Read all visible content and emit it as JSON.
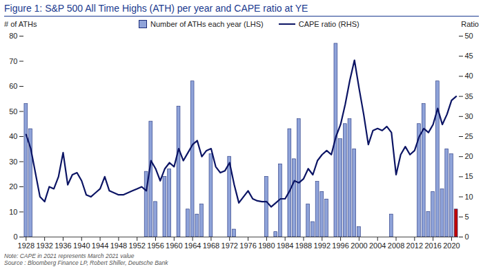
{
  "chart_data": {
    "type": "bar",
    "title": "Figure 1: S&P 500 All Time Highs (ATH) per year and CAPE ratio at YE",
    "ylabel": "# of ATHs",
    "y2label": "Ratio",
    "x": [
      1928,
      1929,
      1930,
      1931,
      1932,
      1933,
      1934,
      1935,
      1936,
      1937,
      1938,
      1939,
      1940,
      1941,
      1942,
      1943,
      1944,
      1945,
      1946,
      1947,
      1948,
      1949,
      1950,
      1951,
      1952,
      1953,
      1954,
      1955,
      1956,
      1957,
      1958,
      1959,
      1960,
      1961,
      1962,
      1963,
      1964,
      1965,
      1966,
      1967,
      1968,
      1969,
      1970,
      1971,
      1972,
      1973,
      1974,
      1975,
      1976,
      1977,
      1978,
      1979,
      1980,
      1981,
      1982,
      1983,
      1984,
      1985,
      1986,
      1987,
      1988,
      1989,
      1990,
      1991,
      1992,
      1993,
      1994,
      1995,
      1996,
      1997,
      1998,
      1999,
      2000,
      2001,
      2002,
      2003,
      2004,
      2005,
      2006,
      2007,
      2008,
      2009,
      2010,
      2011,
      2012,
      2013,
      2014,
      2015,
      2016,
      2017,
      2018,
      2019,
      2020,
      2021
    ],
    "xlim": [
      1927.5,
      2021.5
    ],
    "xticks": [
      1928,
      1932,
      1936,
      1940,
      1944,
      1948,
      1952,
      1956,
      1960,
      1964,
      1968,
      1972,
      1976,
      1980,
      1984,
      1988,
      1992,
      1996,
      2000,
      2004,
      2008,
      2012,
      2016,
      2020
    ],
    "ylim": [
      0,
      80
    ],
    "yticks": [
      0,
      10,
      20,
      30,
      40,
      50,
      60,
      70,
      80
    ],
    "y2lim": [
      0,
      50
    ],
    "y2ticks": [
      0,
      5,
      10,
      15,
      20,
      25,
      30,
      35,
      40,
      45,
      50
    ],
    "legend": "top",
    "series": [
      {
        "name": "Number of ATHs each year (LHS)",
        "type": "bar",
        "color": "#8fa3d9",
        "colors": [
          "#8fa3d9",
          "#8fa3d9",
          "#8fa3d9",
          "#8fa3d9",
          "#8fa3d9",
          "#8fa3d9",
          "#8fa3d9",
          "#8fa3d9",
          "#8fa3d9",
          "#8fa3d9",
          "#8fa3d9",
          "#8fa3d9",
          "#8fa3d9",
          "#8fa3d9",
          "#8fa3d9",
          "#8fa3d9",
          "#8fa3d9",
          "#8fa3d9",
          "#8fa3d9",
          "#8fa3d9",
          "#8fa3d9",
          "#8fa3d9",
          "#8fa3d9",
          "#8fa3d9",
          "#8fa3d9",
          "#8fa3d9",
          "#8fa3d9",
          "#8fa3d9",
          "#8fa3d9",
          "#8fa3d9",
          "#8fa3d9",
          "#8fa3d9",
          "#8fa3d9",
          "#8fa3d9",
          "#8fa3d9",
          "#8fa3d9",
          "#8fa3d9",
          "#8fa3d9",
          "#8fa3d9",
          "#8fa3d9",
          "#8fa3d9",
          "#8fa3d9",
          "#8fa3d9",
          "#8fa3d9",
          "#8fa3d9",
          "#8fa3d9",
          "#8fa3d9",
          "#8fa3d9",
          "#8fa3d9",
          "#8fa3d9",
          "#8fa3d9",
          "#8fa3d9",
          "#8fa3d9",
          "#8fa3d9",
          "#8fa3d9",
          "#8fa3d9",
          "#8fa3d9",
          "#8fa3d9",
          "#8fa3d9",
          "#8fa3d9",
          "#8fa3d9",
          "#8fa3d9",
          "#8fa3d9",
          "#8fa3d9",
          "#8fa3d9",
          "#8fa3d9",
          "#8fa3d9",
          "#8fa3d9",
          "#8fa3d9",
          "#8fa3d9",
          "#8fa3d9",
          "#8fa3d9",
          "#8fa3d9",
          "#8fa3d9",
          "#8fa3d9",
          "#8fa3d9",
          "#8fa3d9",
          "#8fa3d9",
          "#8fa3d9",
          "#8fa3d9",
          "#8fa3d9",
          "#8fa3d9",
          "#8fa3d9",
          "#8fa3d9",
          "#8fa3d9",
          "#8fa3d9",
          "#8fa3d9",
          "#8fa3d9",
          "#8fa3d9",
          "#8fa3d9",
          "#8fa3d9",
          "#8fa3d9",
          "#8fa3d9",
          "#c00000"
        ],
        "values": [
          53,
          43,
          0,
          0,
          0,
          0,
          0,
          0,
          0,
          0,
          0,
          0,
          0,
          0,
          0,
          0,
          0,
          0,
          0,
          0,
          0,
          0,
          0,
          0,
          0,
          0,
          26,
          46,
          14,
          0,
          24,
          27,
          0,
          52,
          0,
          11,
          62,
          9,
          13,
          0,
          33,
          0,
          0,
          0,
          32,
          3,
          0,
          0,
          0,
          0,
          0,
          0,
          24,
          0,
          2,
          29,
          0,
          43,
          31,
          47,
          0,
          13,
          6,
          22,
          18,
          15,
          0,
          77,
          39,
          45,
          47,
          35,
          4,
          0,
          0,
          0,
          0,
          0,
          0,
          9,
          0,
          0,
          0,
          0,
          0,
          45,
          53,
          10,
          18,
          62,
          19,
          35,
          33,
          11
        ]
      },
      {
        "name": "CAPE ratio (RHS)",
        "type": "line",
        "color": "#0b1464",
        "axis": "y2",
        "values": [
          25.5,
          22,
          16,
          10,
          8.8,
          12.5,
          12,
          15,
          21,
          13,
          15.5,
          16,
          14,
          10.5,
          10,
          11,
          12,
          15,
          11.5,
          11,
          10.5,
          10.5,
          11,
          11.5,
          12,
          12.5,
          11.5,
          19,
          17,
          14,
          17,
          18.5,
          17.5,
          22,
          19,
          21,
          23,
          24,
          20,
          21.5,
          22,
          17.5,
          16,
          16.5,
          18.5,
          13,
          8.5,
          10,
          11.5,
          9.5,
          9,
          8.8,
          8.8,
          7.5,
          8.5,
          9.5,
          9.5,
          11.5,
          14,
          13.5,
          14.5,
          17,
          15.5,
          19,
          20.5,
          21.5,
          20.5,
          25,
          28,
          33,
          39,
          44,
          37,
          30.5,
          23,
          26.5,
          27,
          26.5,
          27.5,
          26,
          15.5,
          20.5,
          22.5,
          20.5,
          21.5,
          25,
          27,
          26,
          28,
          32,
          28,
          30.5,
          34,
          35
        ]
      }
    ],
    "notes": [
      "Note: CAPE in 2021 represents March 2021 value",
      "Source : Bloomberg Finance LP, Robert Shiller, Deutsche Bank"
    ]
  }
}
